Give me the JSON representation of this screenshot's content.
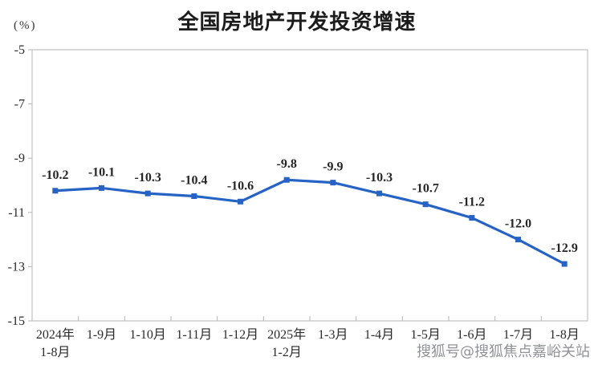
{
  "title": "全国房地产开发投资增速",
  "unit_label": "(%)",
  "watermark": "搜狐号@搜狐焦点嘉峪关站",
  "colors": {
    "line": "#2663C4",
    "frame": "#b5b5b5",
    "tick_label": "#2b2b2b",
    "data_label": "#262626",
    "title": "#1c1c1c",
    "watermark": "#8f9296"
  },
  "chart_data": {
    "type": "line",
    "title": "全国房地产开发投资增速",
    "xlabel": "",
    "ylabel": "(%)",
    "categories": [
      "2024年\n1-8月",
      "1-9月",
      "1-10月",
      "1-11月",
      "1-12月",
      "2025年\n1-2月",
      "1-3月",
      "1-4月",
      "1-5月",
      "1-6月",
      "1-7月",
      "1-8月"
    ],
    "values": [
      -10.2,
      -10.1,
      -10.3,
      -10.4,
      -10.6,
      -9.8,
      -9.9,
      -10.3,
      -10.7,
      -11.2,
      -12.0,
      -12.9
    ],
    "ylim": [
      -15,
      -5
    ],
    "yticks": [
      -5,
      -7,
      -9,
      -11,
      -13,
      -15
    ],
    "grid": false,
    "legend_position": "none",
    "marker": "square",
    "data_labels_shown": true,
    "line_color": "#2663C4"
  }
}
